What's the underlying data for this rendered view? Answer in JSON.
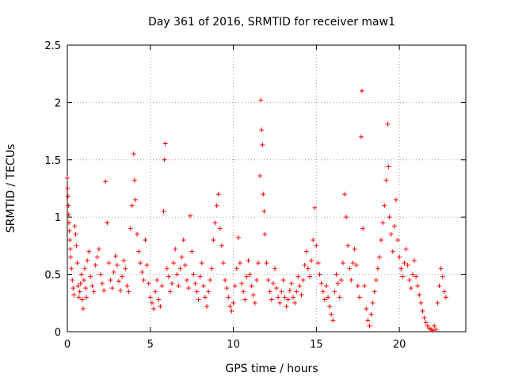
{
  "chart_data": {
    "type": "scatter",
    "title": "Day 361 of 2016, SRMTID for receiver maw1",
    "xlabel": "GPS time / hours",
    "ylabel": "SRMTID / TECUs",
    "xlim": [
      0,
      24
    ],
    "ylim": [
      0,
      2.5
    ],
    "xticks": [
      0,
      5,
      10,
      15,
      20
    ],
    "xtick_labels": [
      "0",
      "5",
      "10",
      "15",
      "20"
    ],
    "yticks": [
      0,
      0.5,
      1,
      1.5,
      2,
      2.5
    ],
    "ytick_labels": [
      "0",
      "0.5",
      "1",
      "1.5",
      "2",
      "2.5"
    ],
    "grid": true,
    "marker": "+",
    "color": "#ff0000",
    "series": [
      {
        "name": "SRMTID",
        "points": [
          [
            0.0,
            1.34
          ],
          [
            0.02,
            1.25
          ],
          [
            0.04,
            1.18
          ],
          [
            0.06,
            1.1
          ],
          [
            0.08,
            1.02
          ],
          [
            0.1,
            0.95
          ],
          [
            0.12,
            0.88
          ],
          [
            0.15,
            0.8
          ],
          [
            0.18,
            0.72
          ],
          [
            0.2,
            0.65
          ],
          [
            0.25,
            0.55
          ],
          [
            0.3,
            0.45
          ],
          [
            0.35,
            0.38
          ],
          [
            0.4,
            0.32
          ],
          [
            0.45,
            0.92
          ],
          [
            0.5,
            0.85
          ],
          [
            0.55,
            0.75
          ],
          [
            0.6,
            0.6
          ],
          [
            0.65,
            0.4
          ],
          [
            0.7,
            0.3
          ],
          [
            0.75,
            0.35
          ],
          [
            0.8,
            0.42
          ],
          [
            0.85,
            0.5
          ],
          [
            0.9,
            0.28
          ],
          [
            0.95,
            0.2
          ],
          [
            1.0,
            0.45
          ],
          [
            1.05,
            0.55
          ],
          [
            1.1,
            0.38
          ],
          [
            1.15,
            0.3
          ],
          [
            1.2,
            0.62
          ],
          [
            1.3,
            0.7
          ],
          [
            1.4,
            0.48
          ],
          [
            1.5,
            0.4
          ],
          [
            1.6,
            0.35
          ],
          [
            1.7,
            0.58
          ],
          [
            1.8,
            0.65
          ],
          [
            1.9,
            0.72
          ],
          [
            2.0,
            0.5
          ],
          [
            2.1,
            0.42
          ],
          [
            2.2,
            0.36
          ],
          [
            2.3,
            1.31
          ],
          [
            2.4,
            0.95
          ],
          [
            2.5,
            0.6
          ],
          [
            2.6,
            0.45
          ],
          [
            2.7,
            0.38
          ],
          [
            2.8,
            0.52
          ],
          [
            2.9,
            0.66
          ],
          [
            3.0,
            0.58
          ],
          [
            3.1,
            0.44
          ],
          [
            3.2,
            0.36
          ],
          [
            3.3,
            0.48
          ],
          [
            3.4,
            0.62
          ],
          [
            3.5,
            0.55
          ],
          [
            3.6,
            0.4
          ],
          [
            3.7,
            0.35
          ],
          [
            3.8,
            0.9
          ],
          [
            3.9,
            1.1
          ],
          [
            4.0,
            1.55
          ],
          [
            4.05,
            1.32
          ],
          [
            4.1,
            1.15
          ],
          [
            4.2,
            0.85
          ],
          [
            4.3,
            0.7
          ],
          [
            4.4,
            0.6
          ],
          [
            4.5,
            0.52
          ],
          [
            4.6,
            0.45
          ],
          [
            4.7,
            0.8
          ],
          [
            4.8,
            0.58
          ],
          [
            4.9,
            0.42
          ],
          [
            5.0,
            0.3
          ],
          [
            5.1,
            0.25
          ],
          [
            5.2,
            0.2
          ],
          [
            5.3,
            0.35
          ],
          [
            5.4,
            0.45
          ],
          [
            5.5,
            0.28
          ],
          [
            5.6,
            0.22
          ],
          [
            5.7,
            0.4
          ],
          [
            5.8,
            1.05
          ],
          [
            5.85,
            1.5
          ],
          [
            5.9,
            1.64
          ],
          [
            6.0,
            0.55
          ],
          [
            6.1,
            0.48
          ],
          [
            6.2,
            0.35
          ],
          [
            6.3,
            0.42
          ],
          [
            6.4,
            0.6
          ],
          [
            6.5,
            0.72
          ],
          [
            6.6,
            0.5
          ],
          [
            6.7,
            0.4
          ],
          [
            6.8,
            0.55
          ],
          [
            6.9,
            0.65
          ],
          [
            7.0,
            0.8
          ],
          [
            7.1,
            0.58
          ],
          [
            7.2,
            0.45
          ],
          [
            7.3,
            0.38
          ],
          [
            7.4,
            1.01
          ],
          [
            7.5,
            0.7
          ],
          [
            7.6,
            0.5
          ],
          [
            7.7,
            0.42
          ],
          [
            7.8,
            0.35
          ],
          [
            7.9,
            0.28
          ],
          [
            8.0,
            0.48
          ],
          [
            8.1,
            0.6
          ],
          [
            8.2,
            0.4
          ],
          [
            8.3,
            0.3
          ],
          [
            8.4,
            0.22
          ],
          [
            8.5,
            0.35
          ],
          [
            8.6,
            0.45
          ],
          [
            8.7,
            0.55
          ],
          [
            8.8,
            0.8
          ],
          [
            8.9,
            0.95
          ],
          [
            9.0,
            1.1
          ],
          [
            9.1,
            1.2
          ],
          [
            9.2,
            0.9
          ],
          [
            9.3,
            0.75
          ],
          [
            9.4,
            0.6
          ],
          [
            9.5,
            0.45
          ],
          [
            9.6,
            0.38
          ],
          [
            9.7,
            0.3
          ],
          [
            9.8,
            0.22
          ],
          [
            9.9,
            0.18
          ],
          [
            10.0,
            0.25
          ],
          [
            10.1,
            0.4
          ],
          [
            10.2,
            0.55
          ],
          [
            10.3,
            0.82
          ],
          [
            10.4,
            0.6
          ],
          [
            10.5,
            0.42
          ],
          [
            10.6,
            0.35
          ],
          [
            10.7,
            0.28
          ],
          [
            10.8,
            0.48
          ],
          [
            10.9,
            0.62
          ],
          [
            11.0,
            0.5
          ],
          [
            11.1,
            0.4
          ],
          [
            11.2,
            0.32
          ],
          [
            11.3,
            0.25
          ],
          [
            11.4,
            0.45
          ],
          [
            11.5,
            0.6
          ],
          [
            11.6,
            1.36
          ],
          [
            11.65,
            2.02
          ],
          [
            11.7,
            1.76
          ],
          [
            11.75,
            1.63
          ],
          [
            11.8,
            1.2
          ],
          [
            11.85,
            1.05
          ],
          [
            11.9,
            0.85
          ],
          [
            12.0,
            0.6
          ],
          [
            12.1,
            0.45
          ],
          [
            12.2,
            0.35
          ],
          [
            12.3,
            0.28
          ],
          [
            12.4,
            0.42
          ],
          [
            12.5,
            0.55
          ],
          [
            12.6,
            0.38
          ],
          [
            12.7,
            0.3
          ],
          [
            12.8,
            0.25
          ],
          [
            12.9,
            0.35
          ],
          [
            13.0,
            0.45
          ],
          [
            13.1,
            0.3
          ],
          [
            13.2,
            0.22
          ],
          [
            13.3,
            0.28
          ],
          [
            13.4,
            0.36
          ],
          [
            13.5,
            0.42
          ],
          [
            13.6,
            0.3
          ],
          [
            13.7,
            0.25
          ],
          [
            13.8,
            0.35
          ],
          [
            13.9,
            0.48
          ],
          [
            14.0,
            0.4
          ],
          [
            14.1,
            0.32
          ],
          [
            14.2,
            0.45
          ],
          [
            14.3,
            0.58
          ],
          [
            14.4,
            0.7
          ],
          [
            14.5,
            0.55
          ],
          [
            14.6,
            0.48
          ],
          [
            14.7,
            0.62
          ],
          [
            14.8,
            0.8
          ],
          [
            14.9,
            1.08
          ],
          [
            15.0,
            0.75
          ],
          [
            15.1,
            0.6
          ],
          [
            15.2,
            0.5
          ],
          [
            15.3,
            0.42
          ],
          [
            15.4,
            0.35
          ],
          [
            15.5,
            0.28
          ],
          [
            15.6,
            0.4
          ],
          [
            15.7,
            0.3
          ],
          [
            15.8,
            0.22
          ],
          [
            15.9,
            0.15
          ],
          [
            16.0,
            0.1
          ],
          [
            16.1,
            0.35
          ],
          [
            16.2,
            0.5
          ],
          [
            16.3,
            0.42
          ],
          [
            16.4,
            0.3
          ],
          [
            16.5,
            0.45
          ],
          [
            16.6,
            0.6
          ],
          [
            16.7,
            1.2
          ],
          [
            16.8,
            1.0
          ],
          [
            16.9,
            0.75
          ],
          [
            17.0,
            0.55
          ],
          [
            17.1,
            0.45
          ],
          [
            17.2,
            0.6
          ],
          [
            17.3,
            0.72
          ],
          [
            17.4,
            0.58
          ],
          [
            17.5,
            0.4
          ],
          [
            17.6,
            0.3
          ],
          [
            17.7,
            1.7
          ],
          [
            17.75,
            2.1
          ],
          [
            17.8,
            0.9
          ],
          [
            17.9,
            0.4
          ],
          [
            18.0,
            0.2
          ],
          [
            18.1,
            0.1
          ],
          [
            18.2,
            0.05
          ],
          [
            18.3,
            0.15
          ],
          [
            18.4,
            0.25
          ],
          [
            18.5,
            0.35
          ],
          [
            18.6,
            0.45
          ],
          [
            18.7,
            0.55
          ],
          [
            18.8,
            0.65
          ],
          [
            18.9,
            0.8
          ],
          [
            19.0,
            0.95
          ],
          [
            19.1,
            1.1
          ],
          [
            19.2,
            1.32
          ],
          [
            19.3,
            1.81
          ],
          [
            19.35,
            1.44
          ],
          [
            19.4,
            1.0
          ],
          [
            19.5,
            0.85
          ],
          [
            19.6,
            0.7
          ],
          [
            19.7,
            0.92
          ],
          [
            19.8,
            1.15
          ],
          [
            19.9,
            0.8
          ],
          [
            20.0,
            0.65
          ],
          [
            20.1,
            0.55
          ],
          [
            20.2,
            0.48
          ],
          [
            20.3,
            0.6
          ],
          [
            20.4,
            0.72
          ],
          [
            20.5,
            0.58
          ],
          [
            20.6,
            0.45
          ],
          [
            20.7,
            0.38
          ],
          [
            20.8,
            0.5
          ],
          [
            20.9,
            0.62
          ],
          [
            21.0,
            0.48
          ],
          [
            21.1,
            0.4
          ],
          [
            21.2,
            0.32
          ],
          [
            21.3,
            0.25
          ],
          [
            21.4,
            0.18
          ],
          [
            21.5,
            0.12
          ],
          [
            21.6,
            0.08
          ],
          [
            21.7,
            0.05
          ],
          [
            21.8,
            0.03
          ],
          [
            21.9,
            0.02
          ],
          [
            22.0,
            0.01
          ],
          [
            22.1,
            0.05
          ],
          [
            22.2,
            0.02
          ],
          [
            22.3,
            0.25
          ],
          [
            22.4,
            0.4
          ],
          [
            22.5,
            0.55
          ],
          [
            22.6,
            0.48
          ],
          [
            22.7,
            0.35
          ],
          [
            22.8,
            0.3
          ]
        ]
      }
    ]
  }
}
